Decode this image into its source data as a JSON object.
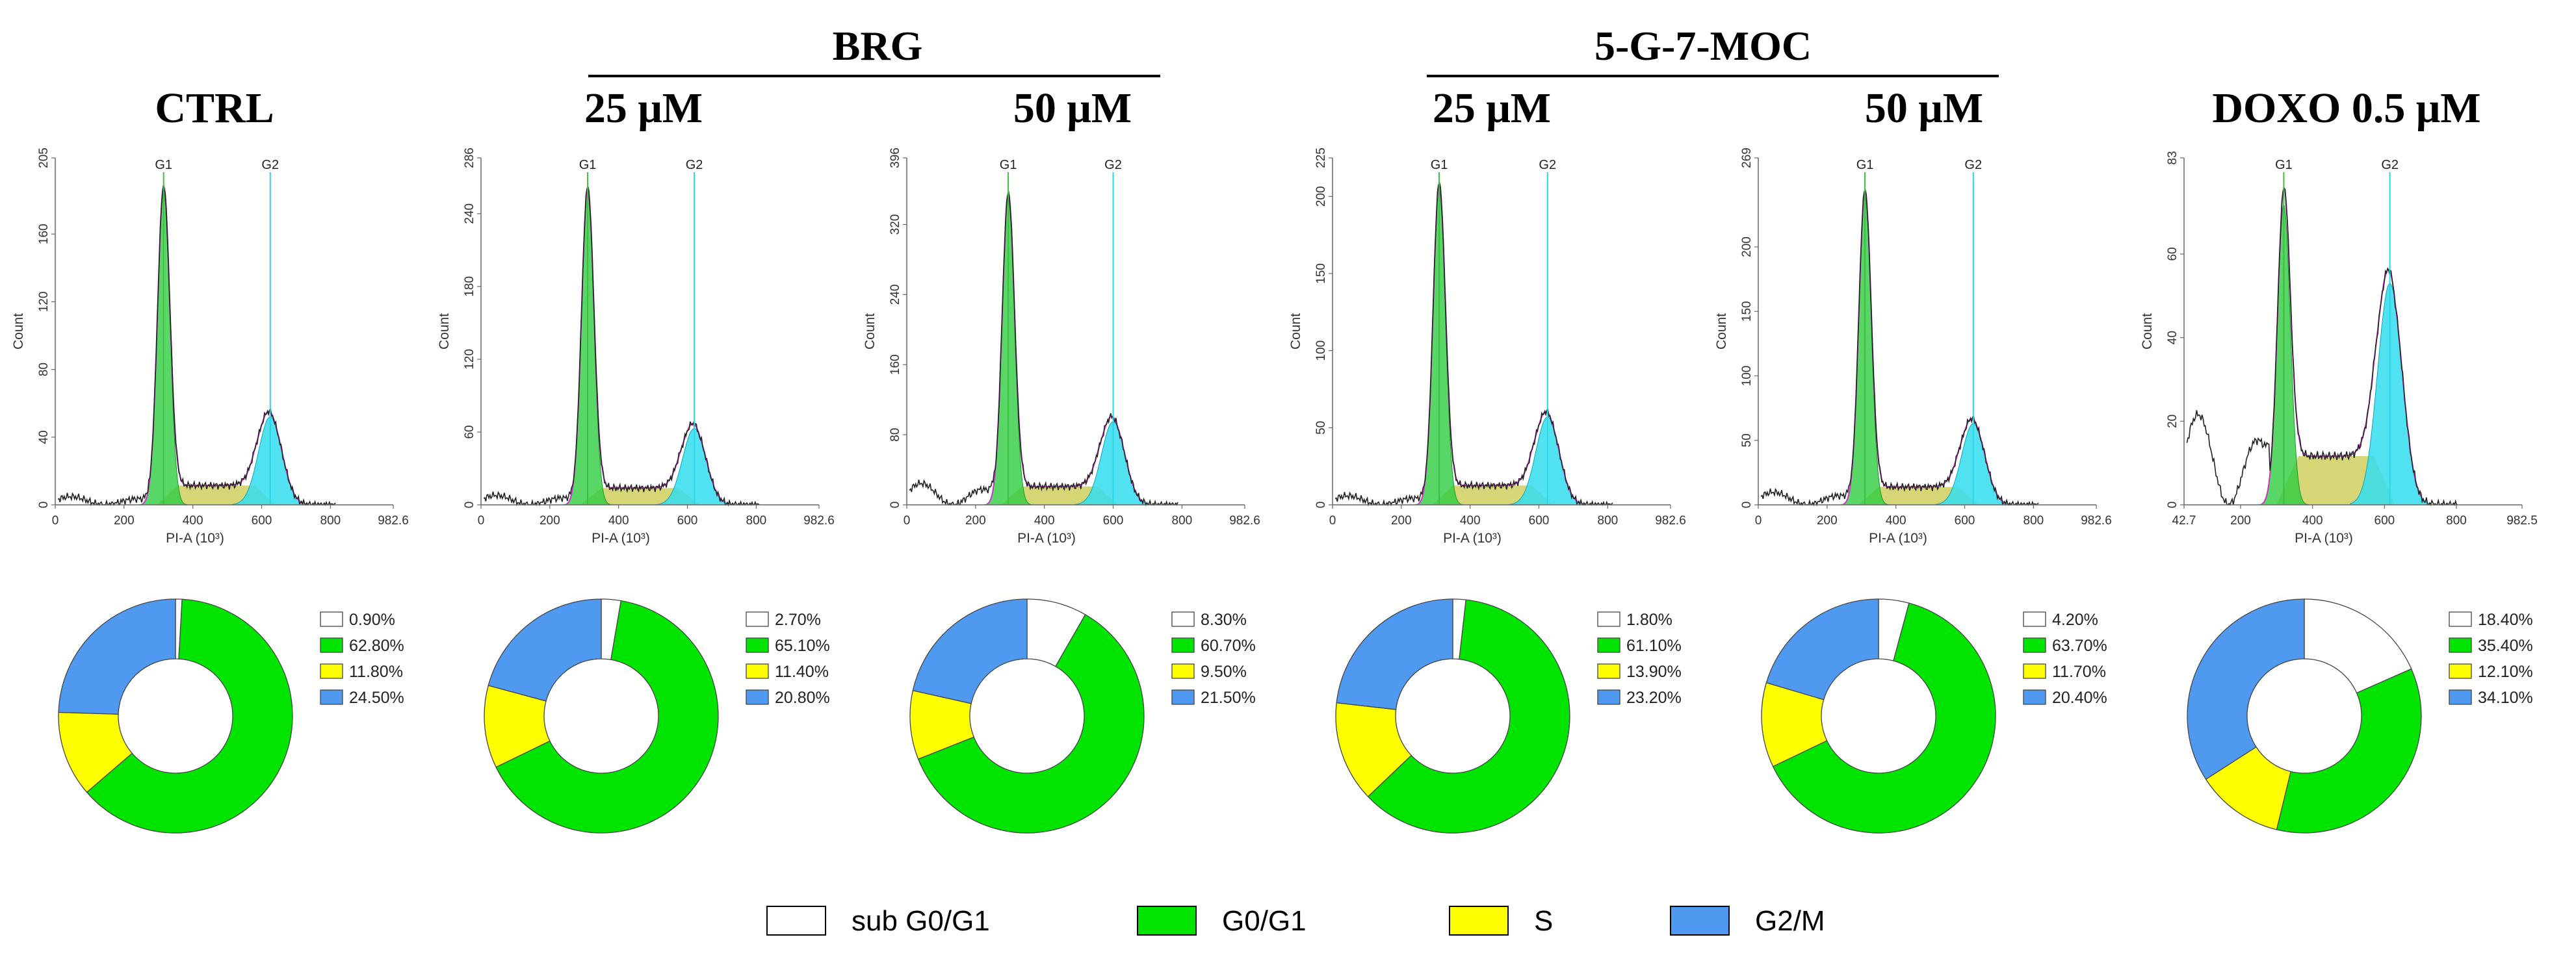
{
  "figure": {
    "groups": [
      "BRG",
      "5-G-7-MOC"
    ],
    "legend": [
      {
        "label": "sub G0/G1",
        "color": "#ffffff"
      },
      {
        "label": "G0/G1",
        "color": "#00e400"
      },
      {
        "label": "S",
        "color": "#ffff00"
      },
      {
        "label": "G2/M",
        "color": "#4f9af0"
      }
    ],
    "colors": {
      "g1_fill": "#2ecc40",
      "g2_fill": "#33ddee",
      "s_fill": "#c8c84a",
      "g1_marker": "#3fbf3f",
      "g2_marker": "#29d6e6",
      "fit_line": "#cc33cc",
      "data_line": "#222222"
    }
  },
  "chart_data": [
    {
      "type": "area",
      "title": "CTRL",
      "xlabel": "PI-A (10³)",
      "ylabel": "Count",
      "x_ticks": [
        "0",
        "200",
        "400",
        "600",
        "800",
        "982.6"
      ],
      "x_range": [
        0,
        982.6
      ],
      "y_ticks": [
        "0",
        "40",
        "80",
        "120",
        "160",
        "205"
      ],
      "y_max": 205,
      "markers": [
        "G1",
        "G2"
      ],
      "g1_peak": {
        "x": 315,
        "y": 185
      },
      "g2_peak": {
        "x": 625,
        "y": 52
      },
      "sub_g1_level": 5,
      "pie": {
        "labels": [
          "sub G0/G1",
          "G0/G1",
          "S",
          "G2/M"
        ],
        "values": [
          0.9,
          62.8,
          11.8,
          24.5
        ],
        "legend": [
          "0.90%",
          "62.80%",
          "11.80%",
          "24.50%"
        ]
      }
    },
    {
      "type": "area",
      "title": "25 μM",
      "group": "BRG",
      "xlabel": "PI-A (10³)",
      "ylabel": "Count",
      "x_ticks": [
        "0",
        "200",
        "400",
        "600",
        "800",
        "982.6"
      ],
      "x_range": [
        0,
        982.6
      ],
      "y_ticks": [
        "0",
        "60",
        "120",
        "180",
        "240",
        "286"
      ],
      "y_max": 286,
      "markers": [
        "G1",
        "G2"
      ],
      "g1_peak": {
        "x": 310,
        "y": 258
      },
      "g2_peak": {
        "x": 620,
        "y": 63
      },
      "sub_g1_level": 8,
      "pie": {
        "labels": [
          "sub G0/G1",
          "G0/G1",
          "S",
          "G2/M"
        ],
        "values": [
          2.7,
          65.1,
          11.4,
          20.8
        ],
        "legend": [
          "2.70%",
          "65.10%",
          "11.40%",
          "20.80%"
        ]
      }
    },
    {
      "type": "area",
      "title": "50 μM",
      "group": "BRG",
      "xlabel": "PI-A (10³)",
      "ylabel": "Count",
      "x_ticks": [
        "0",
        "200",
        "400",
        "600",
        "800",
        "982.6"
      ],
      "x_range": [
        0,
        982.6
      ],
      "y_ticks": [
        "0",
        "80",
        "160",
        "240",
        "320",
        "396"
      ],
      "y_max": 396,
      "markers": [
        "G1",
        "G2"
      ],
      "g1_peak": {
        "x": 295,
        "y": 350
      },
      "g2_peak": {
        "x": 600,
        "y": 95
      },
      "sub_g1_level": 25,
      "pie": {
        "labels": [
          "sub G0/G1",
          "G0/G1",
          "S",
          "G2/M"
        ],
        "values": [
          8.3,
          60.7,
          9.5,
          21.5
        ],
        "legend": [
          "8.30%",
          "60.70%",
          "9.50%",
          "21.50%"
        ]
      }
    },
    {
      "type": "area",
      "title": "25 μM",
      "group": "5-G-7-MOC",
      "xlabel": "PI-A (10³)",
      "ylabel": "Count",
      "x_ticks": [
        "0",
        "200",
        "400",
        "600",
        "800",
        "982.6"
      ],
      "x_range": [
        0,
        982.6
      ],
      "y_ticks": [
        "0",
        "50",
        "100",
        "150",
        "200",
        "225"
      ],
      "y_max": 225,
      "markers": [
        "G1",
        "G2"
      ],
      "g1_peak": {
        "x": 310,
        "y": 205
      },
      "g2_peak": {
        "x": 625,
        "y": 57
      },
      "sub_g1_level": 6,
      "pie": {
        "labels": [
          "sub G0/G1",
          "G0/G1",
          "S",
          "G2/M"
        ],
        "values": [
          1.8,
          61.1,
          13.9,
          23.2
        ],
        "legend": [
          "1.80%",
          "61.10%",
          "13.90%",
          "23.20%"
        ]
      }
    },
    {
      "type": "area",
      "title": "50 μM",
      "group": "5-G-7-MOC",
      "xlabel": "PI-A (10³)",
      "ylabel": "Count",
      "x_ticks": [
        "0",
        "200",
        "400",
        "600",
        "800",
        "982.6"
      ],
      "x_range": [
        0,
        982.6
      ],
      "y_ticks": [
        "0",
        "50",
        "100",
        "150",
        "200",
        "269"
      ],
      "y_max": 269,
      "markers": [
        "G1",
        "G2"
      ],
      "g1_peak": {
        "x": 310,
        "y": 240
      },
      "g2_peak": {
        "x": 625,
        "y": 63
      },
      "sub_g1_level": 10,
      "pie": {
        "labels": [
          "sub G0/G1",
          "G0/G1",
          "S",
          "G2/M"
        ],
        "values": [
          4.2,
          63.7,
          11.7,
          20.4
        ],
        "legend": [
          "4.20%",
          "63.70%",
          "11.70%",
          "20.40%"
        ]
      }
    },
    {
      "type": "area",
      "title": "DOXO 0.5 μM",
      "xlabel": "PI-A (10³)",
      "ylabel": "Count",
      "x_ticks": [
        "42.7",
        "200",
        "400",
        "600",
        "800",
        "982.5"
      ],
      "x_range": [
        42.7,
        982.5
      ],
      "y_ticks": [
        "0",
        "20",
        "40",
        "60",
        "83"
      ],
      "y_max": 83,
      "markers": [
        "G1",
        "G2"
      ],
      "g1_peak": {
        "x": 320,
        "y": 72
      },
      "g2_peak": {
        "x": 615,
        "y": 53
      },
      "sub_g1_level": 22,
      "pie": {
        "labels": [
          "sub G0/G1",
          "G0/G1",
          "S",
          "G2/M"
        ],
        "values": [
          18.4,
          35.4,
          12.1,
          34.1
        ],
        "legend": [
          "18.40%",
          "35.40%",
          "12.10%",
          "34.10%"
        ]
      }
    }
  ]
}
